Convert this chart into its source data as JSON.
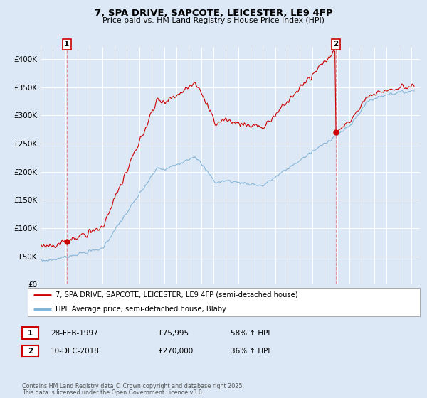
{
  "title_line1": "7, SPA DRIVE, SAPCOTE, LEICESTER, LE9 4FP",
  "title_line2": "Price paid vs. HM Land Registry's House Price Index (HPI)",
  "ylim": [
    0,
    420000
  ],
  "yticks": [
    0,
    50000,
    100000,
    150000,
    200000,
    250000,
    300000,
    350000,
    400000
  ],
  "ytick_labels": [
    "£0",
    "£50K",
    "£100K",
    "£150K",
    "£200K",
    "£250K",
    "£300K",
    "£350K",
    "£400K"
  ],
  "xlim_start": 1995.0,
  "xlim_end": 2025.7,
  "background_color": "#dce8f5",
  "plot_bg_color": "#dce8f5",
  "grid_color": "#ffffff",
  "red_line_color": "#cc0000",
  "blue_line_color": "#7bafd4",
  "marker1_date": 1997.12,
  "marker1_value": 75995,
  "marker2_date": 2018.92,
  "marker2_value": 270000,
  "annotation1_label": "1",
  "annotation2_label": "2",
  "legend_line1": "7, SPA DRIVE, SAPCOTE, LEICESTER, LE9 4FP (semi-detached house)",
  "legend_line2": "HPI: Average price, semi-detached house, Blaby",
  "footer_line1": "Contains HM Land Registry data © Crown copyright and database right 2025.",
  "footer_line2": "This data is licensed under the Open Government Licence v3.0.",
  "table_row1": [
    "1",
    "28-FEB-1997",
    "£75,995",
    "58% ↑ HPI"
  ],
  "table_row2": [
    "2",
    "10-DEC-2018",
    "£270,000",
    "36% ↑ HPI"
  ]
}
